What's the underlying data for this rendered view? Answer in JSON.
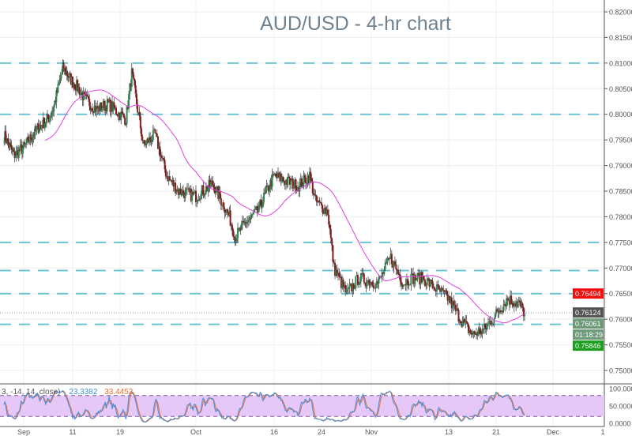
{
  "title": "AUD/USD - 4-hr chart",
  "chart_data": {
    "type": "candlestick",
    "title": "AUD/USD - 4-hr chart",
    "ylim": [
      0.7475,
      0.8225
    ],
    "y_ticks": [
      "0.82000",
      "0.81500",
      "0.81000",
      "0.80500",
      "0.80000",
      "0.79500",
      "0.79000",
      "0.78500",
      "0.78000",
      "0.77500",
      "0.77000",
      "0.76500",
      "0.76000",
      "0.75500",
      "0.75000"
    ],
    "x_ticks": [
      {
        "label": "Sep",
        "date": "2017-09-01"
      },
      {
        "label": "11",
        "date": "2017-09-11"
      },
      {
        "label": "19",
        "date": "2017-09-19"
      },
      {
        "label": "Oct",
        "date": "2017-10-02"
      },
      {
        "label": "16",
        "date": "2017-10-16"
      },
      {
        "label": "24",
        "date": "2017-10-24"
      },
      {
        "label": "Nov",
        "date": "2017-11-01"
      },
      {
        "label": "13",
        "date": "2017-11-13"
      },
      {
        "label": "21",
        "date": "2017-11-21"
      },
      {
        "label": "Dec",
        "date": "2017-12-01"
      },
      {
        "label": "1",
        "date": "2017-12-11"
      }
    ],
    "close_path": [
      [
        "2017-08-28",
        0.796
      ],
      [
        "2017-08-30",
        0.792
      ],
      [
        "2017-09-01",
        0.7935
      ],
      [
        "2017-09-04",
        0.7975
      ],
      [
        "2017-09-06",
        0.799
      ],
      [
        "2017-09-07",
        0.801
      ],
      [
        "2017-09-09",
        0.809
      ],
      [
        "2017-09-12",
        0.805
      ],
      [
        "2017-09-13",
        0.803
      ],
      [
        "2017-09-15",
        0.801
      ],
      [
        "2017-09-17",
        0.802
      ],
      [
        "2017-09-20",
        0.799
      ],
      [
        "2017-09-21",
        0.808
      ],
      [
        "2017-09-23",
        0.794
      ],
      [
        "2017-09-25",
        0.796
      ],
      [
        "2017-09-27",
        0.788
      ],
      [
        "2017-09-29",
        0.785
      ],
      [
        "2017-10-02",
        0.784
      ],
      [
        "2017-10-05",
        0.7865
      ],
      [
        "2017-10-08",
        0.78
      ],
      [
        "2017-10-09",
        0.776
      ],
      [
        "2017-10-11",
        0.779
      ],
      [
        "2017-10-13",
        0.781
      ],
      [
        "2017-10-16",
        0.788
      ],
      [
        "2017-10-18",
        0.787
      ],
      [
        "2017-10-20",
        0.786
      ],
      [
        "2017-10-22",
        0.788
      ],
      [
        "2017-10-23",
        0.783
      ],
      [
        "2017-10-25",
        0.781
      ],
      [
        "2017-10-26",
        0.77
      ],
      [
        "2017-10-28",
        0.765
      ],
      [
        "2017-10-30",
        0.768
      ],
      [
        "2017-11-02",
        0.767
      ],
      [
        "2017-11-04",
        0.772
      ],
      [
        "2017-11-06",
        0.767
      ],
      [
        "2017-11-07",
        0.768
      ],
      [
        "2017-11-09",
        0.768
      ],
      [
        "2017-11-11",
        0.766
      ],
      [
        "2017-11-13",
        0.764
      ],
      [
        "2017-11-15",
        0.76
      ],
      [
        "2017-11-17",
        0.757
      ],
      [
        "2017-11-19",
        0.758
      ],
      [
        "2017-11-21",
        0.761
      ],
      [
        "2017-11-23",
        0.764
      ],
      [
        "2017-11-25",
        0.763
      ],
      [
        "2017-11-26",
        0.76124
      ]
    ],
    "horizontal_levels": [
      0.81,
      0.8,
      0.775,
      0.7695,
      0.765,
      0.759
    ],
    "moving_average_color": "#e040e0",
    "up_color": "#2e8b57",
    "down_color": "#8b1a1a",
    "level_color": "#6cc3d5",
    "price_labels": [
      {
        "text": "0.76494",
        "bg": "#f01010",
        "value": 0.76494
      },
      {
        "text": "0.76124",
        "bg": "#555555",
        "value": 0.76124
      },
      {
        "text": "0.76061",
        "bg": "#6f9a7a",
        "value": 0.76061
      },
      {
        "text": "01:18:29",
        "bg": "#6f9a7a",
        "value": 0.7597
      },
      {
        "text": "0.75846",
        "bg": "#1e9e1e",
        "value": 0.75846
      }
    ],
    "stochastic": {
      "params": "3, -14, 14, close)",
      "k_value": "23.3382",
      "d_value": "33.4452",
      "k_color": "#3c8fe0",
      "d_color": "#f06a2a",
      "band_color": "#e6c8f8",
      "ylim": [
        0,
        100
      ],
      "band": [
        20,
        80
      ],
      "y_ticks": [
        "100.0000",
        "50.0000",
        "0.0000"
      ]
    }
  }
}
